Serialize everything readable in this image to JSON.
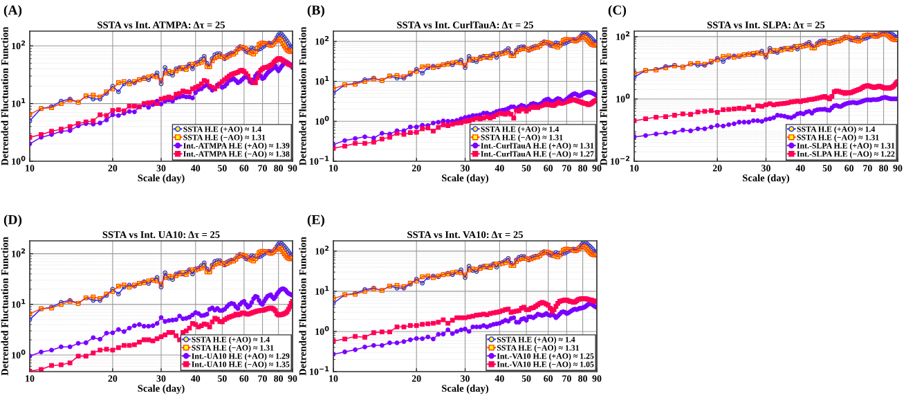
{
  "chart_data": [
    {
      "type": "line",
      "title": "SSTA vs Int. ATMPA: Δτ = 25",
      "xlabel": "Scale (day)",
      "ylabel": "Detrended Fluctuation Function",
      "annotations": [
        "(A)"
      ],
      "log": "xy",
      "grid": true,
      "legend": "bottom right",
      "x": [
        10,
        11,
        12,
        13,
        14,
        15,
        16,
        17,
        18,
        19,
        20,
        21,
        22,
        23,
        24,
        25,
        26,
        27,
        28,
        29,
        30,
        31,
        32,
        33,
        34,
        35,
        36,
        37,
        38,
        39,
        40,
        41,
        42,
        43,
        44,
        45,
        46,
        47,
        48,
        49,
        50,
        51,
        52,
        53,
        54,
        55,
        56,
        57,
        58,
        59,
        60,
        61,
        62,
        63,
        64,
        65,
        66,
        67,
        68,
        69,
        70,
        71,
        72,
        73,
        74,
        75,
        76,
        77,
        78,
        79,
        80,
        81,
        82,
        83,
        84,
        85,
        86,
        87,
        88,
        89,
        90
      ],
      "xlim": [
        10,
        90
      ],
      "xticks": [
        10,
        20,
        30,
        40,
        50,
        60,
        70,
        80,
        90
      ],
      "ylim": [
        1,
        180
      ],
      "yticks": [
        {
          "value": 1,
          "label": "10$^{0}$"
        },
        {
          "value": 10,
          "label": "10$^{1}$"
        },
        {
          "value": 100,
          "label": "10$^{2}$"
        }
      ],
      "series": [
        {
          "name": "SSTA H.E (+AO) ≈ 1.4",
          "color": "#2a2aff",
          "marker": "circle",
          "values": [
            5,
            8.2,
            8.8,
            11,
            12,
            10.5,
            13.5,
            12,
            12,
            15,
            20,
            16,
            22,
            24,
            23,
            26,
            28,
            26,
            30,
            34,
            22,
            42,
            33,
            31,
            40,
            42,
            40,
            43,
            48,
            40,
            50,
            52,
            58,
            66,
            50,
            44,
            60,
            70,
            73,
            73,
            65,
            60,
            68,
            72,
            75,
            74,
            80,
            90,
            97,
            92,
            88,
            80,
            78,
            85,
            92,
            88,
            82,
            85,
            88,
            90,
            95,
            100,
            105,
            108,
            112,
            108,
            110,
            115,
            125,
            140,
            155,
            165,
            160,
            150,
            140,
            130,
            120,
            110,
            100,
            95,
            95
          ]
        },
        {
          "name": "SSTA H.E (−AO) ≈ 1.31",
          "color": "#ff4000",
          "marker": "square",
          "values": [
            6.5,
            8.2,
            8.5,
            10,
            11.5,
            10.5,
            13.5,
            14,
            13,
            16,
            18,
            23,
            24,
            22,
            24,
            26,
            27,
            29,
            30,
            29,
            25,
            34,
            36,
            35,
            37,
            40,
            42,
            39,
            45,
            48,
            48,
            50,
            52,
            58,
            44,
            44,
            55,
            62,
            65,
            68,
            65,
            62,
            64,
            68,
            72,
            72,
            78,
            88,
            92,
            95,
            92,
            88,
            82,
            78,
            75,
            72,
            80,
            90,
            105,
            110,
            112,
            110,
            110,
            108,
            105,
            102,
            105,
            112,
            120,
            128,
            132,
            130,
            122,
            110,
            100,
            92,
            85,
            82,
            80,
            80,
            82
          ]
        },
        {
          "name": "Int.-ATMPA H.E (+AO) ≈ 1.39",
          "color": "#7a00ff",
          "marker": "circle",
          "values": [
            2,
            2.6,
            2.9,
            3.3,
            3.4,
            4.1,
            4.5,
            4.4,
            4.6,
            5.2,
            6.4,
            6.2,
            6.8,
            7.3,
            7.2,
            8.8,
            9.4,
            8.6,
            9.6,
            11,
            9.8,
            11,
            11.5,
            11,
            12.5,
            13,
            13.5,
            13,
            13,
            12.5,
            15.5,
            17.5,
            18,
            20,
            21,
            19,
            17,
            18,
            21,
            22,
            19,
            20,
            22,
            25,
            26,
            27,
            25,
            23,
            24,
            26,
            28,
            30,
            28,
            24,
            23,
            26,
            30,
            33,
            34,
            30,
            27,
            28,
            31,
            34,
            36,
            38,
            40,
            42,
            45,
            40,
            37,
            40,
            44,
            47,
            50,
            52,
            52,
            50,
            48,
            46,
            42
          ]
        },
        {
          "name": "Int.-ATMPA H.E (−AO) ≈ 1.38",
          "color": "#ff0055",
          "marker": "square",
          "values": [
            2.6,
            2.9,
            3.3,
            3.6,
            4,
            4.5,
            4.8,
            5,
            6.4,
            6.2,
            7.6,
            7.8,
            7.5,
            9,
            9,
            8.8,
            10,
            10.3,
            10.5,
            10,
            12,
            12.5,
            13,
            12.5,
            14.5,
            15,
            16.5,
            16,
            15.8,
            18,
            19,
            20,
            22,
            25,
            24,
            20,
            19,
            18,
            20,
            22,
            24,
            26,
            28,
            30,
            32,
            33,
            34,
            35,
            37,
            38,
            36,
            33,
            30,
            26,
            24,
            23,
            23,
            28,
            34,
            38,
            40,
            42,
            42,
            43,
            44,
            46,
            48,
            52,
            55,
            58,
            60,
            60,
            58,
            56,
            54,
            52,
            50,
            48,
            47,
            46,
            45
          ]
        }
      ]
    },
    {
      "type": "line",
      "title": "SSTA vs Int. CurlTauA: Δτ = 25",
      "xlabel": "Scale (day)",
      "ylabel": "Detrended Fluctuation Function",
      "annotations": [
        "(B)"
      ],
      "log": "xy",
      "grid": true,
      "legend": "bottom right",
      "x": [
        10,
        11,
        12,
        13,
        14,
        15,
        16,
        17,
        18,
        19,
        20,
        21,
        22,
        23,
        24,
        25,
        26,
        27,
        28,
        29,
        30,
        31,
        32,
        33,
        34,
        35,
        36,
        37,
        38,
        39,
        40,
        41,
        42,
        43,
        44,
        45,
        46,
        47,
        48,
        49,
        50,
        51,
        52,
        53,
        54,
        55,
        56,
        57,
        58,
        59,
        60,
        61,
        62,
        63,
        64,
        65,
        66,
        67,
        68,
        69,
        70,
        71,
        72,
        73,
        74,
        75,
        76,
        77,
        78,
        79,
        80,
        81,
        82,
        83,
        84,
        85,
        86,
        87,
        88,
        89,
        90
      ],
      "xlim": [
        10,
        90
      ],
      "xticks": [
        10,
        20,
        30,
        40,
        50,
        60,
        70,
        80,
        90
      ],
      "ylim": [
        0.1,
        180
      ],
      "yticks": [
        {
          "value": 0.1,
          "label": "10$^{−1}$"
        },
        {
          "value": 1,
          "label": "10$^{0}$"
        },
        {
          "value": 10,
          "label": "10$^{1}$"
        },
        {
          "value": 100,
          "label": "10$^{2}$"
        }
      ],
      "series": [
        {
          "name": "SSTA H.E (+AO) ≈ 1.4",
          "color": "#2a2aff",
          "marker": "circle",
          "values": [
            5,
            8.2,
            8.8,
            11,
            12,
            10.5,
            13.5,
            12,
            12,
            15,
            20,
            16,
            22,
            24,
            23,
            26,
            28,
            26,
            30,
            34,
            22,
            42,
            33,
            31,
            40,
            42,
            40,
            43,
            48,
            40,
            50,
            52,
            58,
            66,
            50,
            44,
            60,
            70,
            73,
            73,
            65,
            60,
            68,
            72,
            75,
            74,
            80,
            90,
            97,
            92,
            88,
            80,
            78,
            85,
            92,
            88,
            82,
            85,
            88,
            90,
            95,
            100,
            105,
            108,
            112,
            108,
            110,
            115,
            125,
            140,
            155,
            165,
            160,
            150,
            140,
            130,
            120,
            110,
            100,
            95,
            95
          ]
        },
        {
          "name": "SSTA H.E (−AO) ≈ 1.31",
          "color": "#ff4000",
          "marker": "square",
          "values": [
            6.5,
            8.2,
            8.5,
            10,
            11.5,
            10.5,
            13.5,
            14,
            13,
            16,
            18,
            23,
            24,
            22,
            24,
            26,
            27,
            29,
            30,
            29,
            25,
            34,
            36,
            35,
            37,
            40,
            42,
            39,
            45,
            48,
            48,
            50,
            52,
            58,
            44,
            44,
            55,
            62,
            65,
            68,
            65,
            62,
            64,
            68,
            72,
            72,
            78,
            88,
            92,
            95,
            92,
            88,
            82,
            78,
            75,
            72,
            80,
            90,
            105,
            110,
            112,
            110,
            110,
            108,
            105,
            102,
            105,
            112,
            120,
            128,
            132,
            130,
            122,
            110,
            100,
            92,
            85,
            82,
            80,
            80,
            82
          ]
        },
        {
          "name": "Int.-CurlTauA H.E (+AO) ≈ 1.31",
          "color": "#7a00ff",
          "marker": "circle",
          "values": [
            0.26,
            0.33,
            0.37,
            0.41,
            0.38,
            0.5,
            0.48,
            0.58,
            0.58,
            0.72,
            0.72,
            0.8,
            0.78,
            0.9,
            0.95,
            1.02,
            1,
            1,
            1.05,
            1.15,
            1.25,
            1.3,
            1.4,
            1.4,
            1.45,
            1.6,
            1.6,
            1.5,
            1.6,
            1.75,
            1.85,
            1.9,
            1.95,
            2.1,
            2.3,
            2.3,
            2.1,
            2.3,
            2.5,
            2.4,
            2.2,
            2.4,
            2.7,
            2.8,
            2.7,
            2.6,
            2.7,
            2.9,
            3.3,
            3.5,
            3.6,
            3.3,
            3.1,
            3.2,
            3.5,
            3.7,
            3.6,
            3.3,
            3.2,
            3.3,
            3.6,
            3.9,
            4.2,
            4.5,
            4.8,
            4.9,
            4.7,
            4.4,
            4.3,
            4.5,
            4.8,
            5,
            5.2,
            5.3,
            5.4,
            5.3,
            5.2,
            5,
            4.8,
            4.6,
            4.4
          ]
        },
        {
          "name": "Int.-CurlTauA H.E (−AO) ≈ 1.27",
          "color": "#ff0055",
          "marker": "square",
          "values": [
            0.21,
            0.24,
            0.28,
            0.28,
            0.3,
            0.36,
            0.4,
            0.5,
            0.47,
            0.52,
            0.53,
            0.65,
            0.68,
            0.57,
            0.7,
            0.82,
            0.78,
            0.85,
            0.9,
            0.92,
            1,
            1.02,
            1.1,
            1.2,
            1.15,
            1.2,
            1.3,
            1.2,
            1.3,
            1.45,
            1.6,
            1.55,
            1.5,
            1.6,
            1.5,
            1.2,
            1.9,
            1.8,
            2,
            2.1,
            1.8,
            2,
            2.3,
            2.2,
            2.3,
            2.2,
            2.4,
            2.5,
            2.6,
            2.7,
            2.6,
            2.6,
            2.5,
            2.5,
            2.7,
            2.9,
            3,
            2.8,
            2.9,
            3,
            3.1,
            3.2,
            3.3,
            3.4,
            3.5,
            3.4,
            3.3,
            3.2,
            3.1,
            3,
            2.9,
            2.8,
            2.8,
            2.7,
            2.6,
            2.7,
            2.8,
            3,
            3.2,
            3.3,
            3.4
          ]
        }
      ]
    },
    {
      "type": "line",
      "title": "SSTA vs Int. SLPA: Δτ = 25",
      "xlabel": "Scale (day)",
      "ylabel": "Detrended Fluctuation Function",
      "annotations": [
        "(C)"
      ],
      "log": "xy",
      "grid": true,
      "legend": "bottom right",
      "x": [
        10,
        11,
        12,
        13,
        14,
        15,
        16,
        17,
        18,
        19,
        20,
        21,
        22,
        23,
        24,
        25,
        26,
        27,
        28,
        29,
        30,
        31,
        32,
        33,
        34,
        35,
        36,
        37,
        38,
        39,
        40,
        41,
        42,
        43,
        44,
        45,
        46,
        47,
        48,
        49,
        50,
        51,
        52,
        53,
        54,
        55,
        56,
        57,
        58,
        59,
        60,
        61,
        62,
        63,
        64,
        65,
        66,
        67,
        68,
        69,
        70,
        71,
        72,
        73,
        74,
        75,
        76,
        77,
        78,
        79,
        80,
        81,
        82,
        83,
        84,
        85,
        86,
        87,
        88,
        89,
        90
      ],
      "xlim": [
        10,
        90
      ],
      "xticks": [
        10,
        20,
        30,
        40,
        50,
        60,
        70,
        80,
        90
      ],
      "ylim": [
        0.01,
        150
      ],
      "yticks": [
        {
          "value": 0.01,
          "label": "10$^{−2}$"
        },
        {
          "value": 1,
          "label": "10$^{0}$"
        },
        {
          "value": 100,
          "label": "10$^{2}$"
        }
      ],
      "series": [
        {
          "name": "SSTA H.E (+AO) ≈ 1.4",
          "color": "#2a2aff",
          "marker": "circle",
          "values": [
            5,
            8.2,
            8.8,
            11,
            12,
            10.5,
            13.5,
            12,
            12,
            15,
            20,
            16,
            22,
            24,
            23,
            26,
            28,
            26,
            30,
            34,
            22,
            42,
            33,
            31,
            40,
            42,
            40,
            43,
            48,
            40,
            50,
            52,
            58,
            66,
            50,
            44,
            60,
            70,
            73,
            73,
            65,
            60,
            68,
            72,
            75,
            74,
            80,
            90,
            97,
            92,
            88,
            80,
            78,
            85,
            92,
            88,
            82,
            85,
            88,
            90,
            95,
            100,
            105,
            108,
            112,
            108,
            110,
            115,
            125,
            140,
            130,
            135,
            140,
            138,
            130,
            125,
            120,
            110,
            100,
            95,
            95
          ]
        },
        {
          "name": "SSTA H.E (−AO) ≈ 1.31",
          "color": "#ff4000",
          "marker": "square",
          "values": [
            6.5,
            8.2,
            8.5,
            10,
            11.5,
            10.5,
            13.5,
            14,
            13,
            16,
            18,
            23,
            24,
            22,
            24,
            26,
            27,
            29,
            30,
            29,
            25,
            34,
            36,
            35,
            37,
            40,
            42,
            39,
            45,
            48,
            48,
            50,
            52,
            58,
            44,
            44,
            55,
            62,
            65,
            68,
            65,
            62,
            64,
            68,
            72,
            72,
            78,
            88,
            92,
            95,
            92,
            88,
            82,
            78,
            75,
            72,
            80,
            90,
            105,
            110,
            112,
            110,
            110,
            108,
            105,
            102,
            105,
            112,
            120,
            128,
            125,
            125,
            122,
            110,
            100,
            92,
            85,
            82,
            80,
            80,
            82
          ]
        },
        {
          "name": "Int.-SLPA H.E (+AO) ≈ 1.31",
          "color": "#7a00ff",
          "marker": "circle",
          "values": [
            0.06,
            0.067,
            0.075,
            0.08,
            0.085,
            0.1,
            0.095,
            0.11,
            0.11,
            0.125,
            0.14,
            0.135,
            0.15,
            0.16,
            0.18,
            0.18,
            0.18,
            0.2,
            0.2,
            0.19,
            0.22,
            0.23,
            0.25,
            0.3,
            0.29,
            0.28,
            0.26,
            0.25,
            0.28,
            0.33,
            0.35,
            0.33,
            0.38,
            0.4,
            0.35,
            0.42,
            0.45,
            0.46,
            0.46,
            0.47,
            0.44,
            0.43,
            0.52,
            0.6,
            0.62,
            0.58,
            0.57,
            0.63,
            0.68,
            0.72,
            0.75,
            0.76,
            0.78,
            0.76,
            0.74,
            0.77,
            0.8,
            0.84,
            0.88,
            0.92,
            0.94,
            0.93,
            0.92,
            0.95,
            0.95,
            0.94,
            0.96,
            0.98,
            1.02,
            1.08,
            1.1,
            1.12,
            1.1,
            1.06,
            1.03,
            1,
            1,
            1,
            1,
            1,
            1
          ]
        },
        {
          "name": "Int.-SLPA H.E (−AO) ≈ 1.22",
          "color": "#ff0055",
          "marker": "square",
          "values": [
            0.2,
            0.23,
            0.26,
            0.27,
            0.3,
            0.33,
            0.32,
            0.38,
            0.4,
            0.42,
            0.37,
            0.45,
            0.46,
            0.48,
            0.5,
            0.49,
            0.55,
            0.45,
            0.6,
            0.58,
            0.65,
            0.7,
            0.64,
            0.68,
            0.7,
            0.72,
            0.75,
            0.8,
            0.82,
            0.85,
            0.82,
            0.88,
            0.9,
            0.95,
            0.97,
            1,
            1.05,
            1.1,
            1.15,
            1.2,
            1.1,
            1,
            1.2,
            1.7,
            1.8,
            1.75,
            1.65,
            1.6,
            1.5,
            1.6,
            1.55,
            1.6,
            1.7,
            1.8,
            1.9,
            2,
            2.1,
            2.3,
            2.5,
            2.6,
            2.7,
            2.6,
            2.5,
            2.4,
            2.3,
            2.4,
            2.5,
            2.6,
            2.5,
            2.4,
            2.3,
            2.2,
            2.2,
            2.3,
            2.2,
            2.3,
            2.4,
            2.6,
            2.9,
            3.3,
            3.6
          ]
        }
      ]
    },
    {
      "type": "line",
      "title": "SSTA vs Int. UA10: Δτ = 25",
      "xlabel": "Scale (day)",
      "ylabel": "Detrended Fluctuation Function",
      "annotations": [
        "(D)"
      ],
      "log": "xy",
      "grid": true,
      "legend": "bottom right",
      "x": [
        10,
        11,
        12,
        13,
        14,
        15,
        16,
        17,
        18,
        19,
        20,
        21,
        22,
        23,
        24,
        25,
        26,
        27,
        28,
        29,
        30,
        31,
        32,
        33,
        34,
        35,
        36,
        37,
        38,
        39,
        40,
        41,
        42,
        43,
        44,
        45,
        46,
        47,
        48,
        49,
        50,
        51,
        52,
        53,
        54,
        55,
        56,
        57,
        58,
        59,
        60,
        61,
        62,
        63,
        64,
        65,
        66,
        67,
        68,
        69,
        70,
        71,
        72,
        73,
        74,
        75,
        76,
        77,
        78,
        79,
        80,
        81,
        82,
        83,
        84,
        85,
        86,
        87,
        88,
        89,
        90
      ],
      "xlim": [
        10,
        90
      ],
      "xticks": [
        10,
        20,
        30,
        40,
        50,
        60,
        70,
        80,
        90
      ],
      "ylim": [
        0.47,
        180
      ],
      "yticks": [
        {
          "value": 1,
          "label": "10$^{0}$"
        },
        {
          "value": 10,
          "label": "10$^{1}$"
        },
        {
          "value": 100,
          "label": "10$^{2}$"
        }
      ],
      "series": [
        {
          "name": "SSTA H.E (+AO) ≈ 1.4",
          "color": "#2a2aff",
          "marker": "circle",
          "values": [
            5,
            8.2,
            8.8,
            11,
            12,
            10.5,
            13.5,
            12,
            12,
            15,
            20,
            16,
            22,
            24,
            23,
            26,
            28,
            26,
            30,
            34,
            22,
            42,
            33,
            31,
            40,
            42,
            40,
            43,
            48,
            40,
            50,
            52,
            58,
            66,
            50,
            44,
            60,
            70,
            73,
            73,
            65,
            60,
            68,
            72,
            75,
            74,
            80,
            90,
            97,
            92,
            88,
            80,
            78,
            85,
            92,
            88,
            82,
            85,
            88,
            90,
            95,
            100,
            105,
            108,
            112,
            108,
            110,
            115,
            125,
            140,
            155,
            165,
            160,
            150,
            140,
            130,
            120,
            110,
            100,
            95,
            95
          ]
        },
        {
          "name": "SSTA H.E (−AO) ≈ 1.31",
          "color": "#ff4000",
          "marker": "square",
          "values": [
            6.5,
            8.2,
            8.5,
            10,
            11.5,
            10.5,
            13.5,
            14,
            13,
            16,
            18,
            23,
            24,
            22,
            24,
            26,
            27,
            29,
            30,
            29,
            25,
            34,
            36,
            35,
            37,
            40,
            42,
            39,
            45,
            48,
            48,
            50,
            52,
            58,
            44,
            44,
            55,
            62,
            65,
            68,
            65,
            62,
            64,
            68,
            72,
            72,
            78,
            88,
            92,
            95,
            92,
            88,
            82,
            78,
            75,
            72,
            80,
            90,
            105,
            110,
            112,
            110,
            110,
            108,
            105,
            102,
            105,
            112,
            120,
            128,
            132,
            130,
            122,
            110,
            100,
            92,
            85,
            82,
            80,
            80,
            82
          ]
        },
        {
          "name": "Int.-UA10 H.E (+AO) ≈ 1.29",
          "color": "#7a00ff",
          "marker": "circle",
          "values": [
            0.95,
            1.15,
            1.25,
            1.45,
            1.45,
            1.7,
            1.75,
            2.2,
            2.05,
            2.7,
            2.75,
            3.2,
            2.9,
            3.4,
            3.8,
            4,
            3.7,
            3.7,
            3.8,
            4.2,
            5.5,
            4.6,
            4.8,
            4.9,
            5,
            5.9,
            5.2,
            5.3,
            5.6,
            6.2,
            6.9,
            6.6,
            6,
            6.1,
            6.4,
            8,
            8.5,
            7.7,
            8.3,
            7.6,
            7.6,
            8,
            9,
            10,
            10.5,
            10.2,
            9,
            8.3,
            10,
            11,
            11.5,
            10,
            8.8,
            9.5,
            11,
            13,
            14.5,
            14,
            12,
            10.5,
            10,
            11.5,
            13,
            14.5,
            15,
            15.5,
            14,
            13,
            14,
            16,
            17.5,
            19,
            20,
            20.5,
            20,
            19,
            17.5,
            16.5,
            16,
            15.5,
            15
          ]
        },
        {
          "name": "Int.-UA10 H.E (−AO) ≈ 1.35",
          "color": "#ff0055",
          "marker": "square",
          "values": [
            0.48,
            0.52,
            0.62,
            0.64,
            0.7,
            0.95,
            0.95,
            1.1,
            1.25,
            1.3,
            1.25,
            1.4,
            1.55,
            1.55,
            1.6,
            1.8,
            2,
            2,
            1.9,
            2.1,
            2.3,
            2.5,
            2.8,
            2.8,
            2.4,
            2,
            2.8,
            3,
            3.4,
            4.2,
            4,
            3.6,
            3.8,
            4.1,
            4,
            3.6,
            4.5,
            5.3,
            5.1,
            4.6,
            4.5,
            5,
            5.3,
            5.6,
            5.8,
            6,
            6.4,
            6.2,
            6.4,
            6.8,
            6.8,
            6.5,
            6.4,
            6.6,
            6.8,
            7,
            7.2,
            7.4,
            7.5,
            7.6,
            7.6,
            7.8,
            8,
            8.2,
            8.4,
            8.5,
            8.3,
            8,
            7.5,
            6.5,
            6.2,
            6.2,
            6.3,
            6.4,
            6.6,
            6.8,
            7.2,
            8,
            9,
            10.5,
            11.5
          ]
        }
      ]
    },
    {
      "type": "line",
      "title": "SSTA vs Int. VA10: Δτ = 25",
      "xlabel": "Scale (day)",
      "ylabel": "Detrended Fluctuation Function",
      "annotations": [
        "(E)"
      ],
      "log": "xy",
      "grid": true,
      "legend": "bottom right",
      "x": [
        10,
        11,
        12,
        13,
        14,
        15,
        16,
        17,
        18,
        19,
        20,
        21,
        22,
        23,
        24,
        25,
        26,
        27,
        28,
        29,
        30,
        31,
        32,
        33,
        34,
        35,
        36,
        37,
        38,
        39,
        40,
        41,
        42,
        43,
        44,
        45,
        46,
        47,
        48,
        49,
        50,
        51,
        52,
        53,
        54,
        55,
        56,
        57,
        58,
        59,
        60,
        61,
        62,
        63,
        64,
        65,
        66,
        67,
        68,
        69,
        70,
        71,
        72,
        73,
        74,
        75,
        76,
        77,
        78,
        79,
        80,
        81,
        82,
        83,
        84,
        85,
        86,
        87,
        88,
        89,
        90
      ],
      "xlim": [
        10,
        90
      ],
      "xticks": [
        10,
        20,
        30,
        40,
        50,
        60,
        70,
        80,
        90
      ],
      "ylim": [
        0.1,
        180
      ],
      "yticks": [
        {
          "value": 0.1,
          "label": "10$^{−1}$"
        },
        {
          "value": 1,
          "label": "10$^{0}$"
        },
        {
          "value": 10,
          "label": "10$^{1}$"
        },
        {
          "value": 100,
          "label": "10$^{2}$"
        }
      ],
      "series": [
        {
          "name": "SSTA H.E (+AO) ≈ 1.4",
          "color": "#2a2aff",
          "marker": "circle",
          "values": [
            5,
            8.2,
            8.8,
            11,
            12,
            10.5,
            13.5,
            12,
            12,
            15,
            20,
            16,
            22,
            24,
            23,
            26,
            28,
            26,
            30,
            34,
            22,
            42,
            33,
            31,
            40,
            42,
            40,
            43,
            48,
            40,
            50,
            52,
            58,
            66,
            50,
            44,
            60,
            70,
            73,
            73,
            65,
            60,
            68,
            72,
            75,
            74,
            80,
            90,
            97,
            92,
            88,
            80,
            78,
            85,
            92,
            88,
            82,
            85,
            88,
            90,
            95,
            100,
            105,
            108,
            112,
            108,
            110,
            115,
            125,
            140,
            155,
            165,
            160,
            150,
            140,
            130,
            120,
            110,
            100,
            95,
            95
          ]
        },
        {
          "name": "SSTA H.E (−AO) ≈ 1.31",
          "color": "#ff4000",
          "marker": "square",
          "values": [
            6.5,
            8.2,
            8.5,
            10,
            11.5,
            10.5,
            13.5,
            14,
            13,
            16,
            18,
            23,
            24,
            22,
            24,
            26,
            27,
            29,
            30,
            29,
            25,
            34,
            36,
            35,
            37,
            40,
            42,
            39,
            45,
            48,
            48,
            50,
            52,
            58,
            44,
            44,
            55,
            62,
            65,
            68,
            65,
            62,
            64,
            68,
            72,
            72,
            78,
            88,
            92,
            95,
            92,
            88,
            82,
            78,
            75,
            72,
            80,
            90,
            105,
            110,
            112,
            110,
            110,
            108,
            105,
            102,
            105,
            112,
            120,
            128,
            132,
            130,
            122,
            110,
            100,
            92,
            85,
            82,
            80,
            80,
            82
          ]
        },
        {
          "name": "Int.-VA10 H.E (+AO) ≈ 1.25",
          "color": "#7a00ff",
          "marker": "circle",
          "values": [
            0.27,
            0.31,
            0.35,
            0.41,
            0.45,
            0.45,
            0.52,
            0.52,
            0.56,
            0.62,
            0.67,
            0.66,
            0.73,
            0.65,
            0.85,
            0.86,
            1.1,
            0.88,
            1,
            1.1,
            1.15,
            1,
            1.3,
            1.3,
            1.3,
            1.4,
            1.3,
            1.4,
            1.5,
            1.55,
            1.6,
            1.75,
            1.9,
            1.8,
            2.1,
            2.2,
            1.7,
            1.7,
            2,
            2.1,
            1.9,
            2.3,
            2.3,
            2.2,
            2.4,
            2.7,
            2.6,
            2.5,
            2.6,
            2.8,
            2.6,
            2.5,
            2.8,
            2.5,
            2.2,
            2.4,
            2.7,
            3,
            3.1,
            3,
            2.8,
            2.9,
            3.1,
            3.3,
            3.5,
            3.6,
            3.5,
            3.6,
            3.8,
            3.8,
            3.9,
            4,
            4.2,
            4.5,
            4.8,
            4.9,
            4.8,
            4.6,
            4.3,
            4.1,
            4
          ]
        },
        {
          "name": "Int.-VA10 H.E (−AO) ≈ 1.05",
          "color": "#ff0055",
          "marker": "square",
          "values": [
            0.58,
            0.65,
            0.75,
            0.72,
            0.93,
            0.97,
            0.97,
            1.3,
            1.3,
            1.4,
            1.4,
            1.5,
            1.55,
            1.6,
            1.7,
            1.95,
            1.6,
            1.9,
            2.2,
            2.2,
            2.2,
            2.3,
            2.4,
            2.55,
            2.6,
            2.7,
            2.6,
            2.8,
            2.9,
            3,
            3.1,
            3.3,
            3.5,
            3.6,
            3,
            3.1,
            3.2,
            3.3,
            3.8,
            4,
            3.5,
            3.5,
            3.8,
            3.9,
            4.2,
            4.6,
            5,
            5.3,
            5.1,
            4.8,
            4.5,
            3.8,
            3,
            3.5,
            4.2,
            5,
            5.6,
            5.8,
            5.9,
            6.1,
            6,
            5.8,
            5.6,
            5.5,
            5.3,
            5.4,
            5.8,
            6.2,
            6.4,
            6.5,
            6.6,
            6.6,
            6.5,
            6.4,
            6.2,
            6.1,
            6,
            5.8,
            5.7,
            5.6,
            5.7
          ]
        }
      ]
    }
  ]
}
